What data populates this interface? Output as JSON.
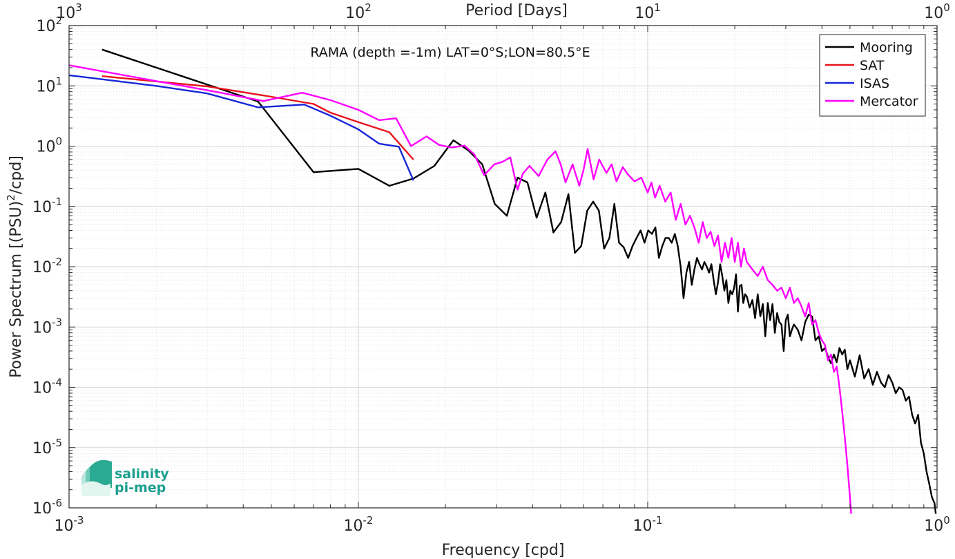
{
  "chart_data": {
    "type": "line",
    "title": "",
    "annotation": "RAMA (depth =-1m) LAT=0°S;LON=80.5°E",
    "xlabel": "Frequency [cpd]",
    "ylabel_main": "Power Spectrum [(PSU)",
    "ylabel_sup": "2",
    "ylabel_tail": "/cpd]",
    "top_xlabel": "Period [Days]",
    "xscale": "log",
    "yscale": "log",
    "xlim": [
      0.001,
      1
    ],
    "ylim": [
      1e-06,
      100
    ],
    "grid": true,
    "legend_position": "top-right",
    "x_ticks": [
      {
        "value": 0.001,
        "base": "10",
        "exp": "-3"
      },
      {
        "value": 0.01,
        "base": "10",
        "exp": "-2"
      },
      {
        "value": 0.1,
        "base": "10",
        "exp": "-1"
      },
      {
        "value": 1,
        "base": "10",
        "exp": "0"
      }
    ],
    "top_ticks": [
      {
        "freq": 0.001,
        "base": "10",
        "exp": "3"
      },
      {
        "freq": 0.01,
        "base": "10",
        "exp": "2"
      },
      {
        "freq": 0.1,
        "base": "10",
        "exp": "1"
      },
      {
        "freq": 1,
        "base": "10",
        "exp": "0"
      }
    ],
    "y_ticks": [
      {
        "value": 1e-06,
        "base": "10",
        "exp": "-6"
      },
      {
        "value": 1e-05,
        "base": "10",
        "exp": "-5"
      },
      {
        "value": 0.0001,
        "base": "10",
        "exp": "-4"
      },
      {
        "value": 0.001,
        "base": "10",
        "exp": "-3"
      },
      {
        "value": 0.01,
        "base": "10",
        "exp": "-2"
      },
      {
        "value": 0.1,
        "base": "10",
        "exp": "-1"
      },
      {
        "value": 1,
        "base": "10",
        "exp": "0"
      },
      {
        "value": 10,
        "base": "10",
        "exp": "1"
      },
      {
        "value": 100,
        "base": "10",
        "exp": "2"
      }
    ],
    "series": [
      {
        "name": "Mooring",
        "color": "#000000",
        "points": [
          [
            0.0013,
            40
          ],
          [
            0.0045,
            5.5
          ],
          [
            0.007,
            0.37
          ],
          [
            0.01,
            0.42
          ],
          [
            0.0128,
            0.22
          ],
          [
            0.0155,
            0.29
          ],
          [
            0.0183,
            0.47
          ],
          [
            0.0213,
            1.25
          ],
          [
            0.024,
            0.85
          ],
          [
            0.0268,
            0.5
          ],
          [
            0.0296,
            0.11
          ],
          [
            0.0326,
            0.07
          ],
          [
            0.0355,
            0.3
          ],
          [
            0.0384,
            0.25
          ],
          [
            0.0413,
            0.065
          ],
          [
            0.0443,
            0.17
          ],
          [
            0.0472,
            0.037
          ],
          [
            0.0502,
            0.055
          ],
          [
            0.0532,
            0.16
          ],
          [
            0.056,
            0.017
          ],
          [
            0.0589,
            0.022
          ],
          [
            0.0618,
            0.085
          ],
          [
            0.0648,
            0.12
          ],
          [
            0.0678,
            0.085
          ],
          [
            0.0707,
            0.02
          ],
          [
            0.0737,
            0.03
          ],
          [
            0.0767,
            0.11
          ],
          [
            0.0796,
            0.025
          ],
          [
            0.0826,
            0.021
          ],
          [
            0.0856,
            0.014
          ],
          [
            0.0886,
            0.022
          ],
          [
            0.0915,
            0.03
          ],
          [
            0.0945,
            0.04
          ],
          [
            0.0975,
            0.025
          ],
          [
            0.1004,
            0.04
          ],
          [
            0.1034,
            0.035
          ],
          [
            0.1063,
            0.045
          ],
          [
            0.1093,
            0.014
          ],
          [
            0.1123,
            0.022
          ],
          [
            0.1152,
            0.03
          ],
          [
            0.1182,
            0.03
          ],
          [
            0.1211,
            0.025
          ],
          [
            0.1241,
            0.035
          ],
          [
            0.127,
            0.022
          ],
          [
            0.13,
            0.01
          ],
          [
            0.133,
            0.003
          ],
          [
            0.136,
            0.008
          ],
          [
            0.139,
            0.012
          ],
          [
            0.142,
            0.005
          ],
          [
            0.145,
            0.009
          ],
          [
            0.148,
            0.014
          ],
          [
            0.151,
            0.011
          ],
          [
            0.154,
            0.009
          ],
          [
            0.157,
            0.012
          ],
          [
            0.16,
            0.01
          ],
          [
            0.163,
            0.008
          ],
          [
            0.166,
            0.011
          ],
          [
            0.169,
            0.006
          ],
          [
            0.172,
            0.0035
          ],
          [
            0.175,
            0.0055
          ],
          [
            0.178,
            0.011
          ],
          [
            0.181,
            0.007
          ],
          [
            0.184,
            0.004
          ],
          [
            0.187,
            0.006
          ],
          [
            0.19,
            0.0025
          ],
          [
            0.193,
            0.004
          ],
          [
            0.196,
            0.0035
          ],
          [
            0.199,
            0.0045
          ],
          [
            0.202,
            0.0075
          ],
          [
            0.205,
            0.0018
          ],
          [
            0.208,
            0.0048
          ],
          [
            0.211,
            0.005
          ],
          [
            0.214,
            0.0025
          ],
          [
            0.217,
            0.0035
          ],
          [
            0.22,
            0.0032
          ],
          [
            0.225,
            0.0021
          ],
          [
            0.23,
            0.0028
          ],
          [
            0.235,
            0.0014
          ],
          [
            0.24,
            0.0035
          ],
          [
            0.245,
            0.0015
          ],
          [
            0.25,
            0.0024
          ],
          [
            0.255,
            0.0007
          ],
          [
            0.26,
            0.0025
          ],
          [
            0.265,
            0.0013
          ],
          [
            0.27,
            0.0024
          ],
          [
            0.275,
            0.0008
          ],
          [
            0.28,
            0.0017
          ],
          [
            0.285,
            0.0012
          ],
          [
            0.29,
            0.0011
          ],
          [
            0.295,
            0.0004
          ],
          [
            0.3,
            0.0013
          ],
          [
            0.305,
            0.0016
          ],
          [
            0.31,
            0.0007
          ],
          [
            0.315,
            0.0009
          ],
          [
            0.32,
            0.0011
          ],
          [
            0.33,
            0.0009
          ],
          [
            0.34,
            0.0006
          ],
          [
            0.35,
            0.0012
          ],
          [
            0.36,
            0.0016
          ],
          [
            0.37,
            0.0015
          ],
          [
            0.38,
            0.0006
          ],
          [
            0.39,
            0.0007
          ],
          [
            0.4,
            0.0004
          ],
          [
            0.41,
            0.00045
          ],
          [
            0.42,
            0.00032
          ],
          [
            0.43,
            0.00025
          ],
          [
            0.44,
            0.00035
          ],
          [
            0.45,
            0.00026
          ],
          [
            0.46,
            0.00045
          ],
          [
            0.47,
            0.00035
          ],
          [
            0.48,
            0.00042
          ],
          [
            0.49,
            0.0002
          ],
          [
            0.5,
            0.00028
          ],
          [
            0.52,
            0.00015
          ],
          [
            0.54,
            0.00034
          ],
          [
            0.56,
            0.00014
          ],
          [
            0.58,
            0.0002
          ],
          [
            0.6,
            0.00011
          ],
          [
            0.62,
            0.00018
          ],
          [
            0.64,
            0.00012
          ],
          [
            0.66,
            0.0001
          ],
          [
            0.68,
            0.00016
          ],
          [
            0.7,
            0.00012
          ],
          [
            0.72,
            8e-05
          ],
          [
            0.74,
            0.0001
          ],
          [
            0.76,
            9e-05
          ],
          [
            0.78,
            6e-05
          ],
          [
            0.8,
            7e-05
          ],
          [
            0.82,
            3.5e-05
          ],
          [
            0.84,
            2.5e-05
          ],
          [
            0.86,
            3.5e-05
          ],
          [
            0.88,
            1.2e-05
          ],
          [
            0.9,
            8e-06
          ],
          [
            0.92,
            4e-06
          ],
          [
            0.94,
            2.5e-06
          ],
          [
            0.96,
            1.5e-06
          ],
          [
            0.98,
            1.2e-06
          ],
          [
            0.99,
            8e-07
          ]
        ]
      },
      {
        "name": "SAT",
        "color": "#e8141b",
        "points": [
          [
            0.0013,
            14.5
          ],
          [
            0.003,
            9.8
          ],
          [
            0.005,
            6.6
          ],
          [
            0.007,
            5
          ],
          [
            0.008,
            3.6
          ],
          [
            0.01,
            2.5
          ],
          [
            0.0128,
            1.7
          ],
          [
            0.0155,
            0.6
          ]
        ]
      },
      {
        "name": "ISAS",
        "color": "#1525d8",
        "points": [
          [
            0.001,
            15
          ],
          [
            0.002,
            10
          ],
          [
            0.003,
            7.5
          ],
          [
            0.0045,
            4.4
          ],
          [
            0.0065,
            4.9
          ],
          [
            0.008,
            3.2
          ],
          [
            0.01,
            1.9
          ],
          [
            0.0118,
            1.1
          ],
          [
            0.0138,
            0.98
          ],
          [
            0.0155,
            0.27
          ]
        ]
      },
      {
        "name": "Mercator",
        "color": "#ff00ff",
        "points": [
          [
            0.001,
            22
          ],
          [
            0.002,
            12
          ],
          [
            0.0032,
            8
          ],
          [
            0.0047,
            5.6
          ],
          [
            0.0064,
            7.7
          ],
          [
            0.008,
            5.8
          ],
          [
            0.01,
            4
          ],
          [
            0.0118,
            2.7
          ],
          [
            0.0135,
            2.9
          ],
          [
            0.0152,
            1
          ],
          [
            0.0172,
            1.45
          ],
          [
            0.019,
            1.05
          ],
          [
            0.021,
            0.95
          ],
          [
            0.0233,
            1.02
          ],
          [
            0.0252,
            0.72
          ],
          [
            0.0272,
            0.33
          ],
          [
            0.0295,
            0.5
          ],
          [
            0.0315,
            0.55
          ],
          [
            0.0335,
            0.65
          ],
          [
            0.0355,
            0.19
          ],
          [
            0.037,
            0.35
          ],
          [
            0.039,
            0.47
          ],
          [
            0.042,
            0.32
          ],
          [
            0.045,
            0.6
          ],
          [
            0.048,
            0.82
          ],
          [
            0.05,
            0.5
          ],
          [
            0.052,
            0.25
          ],
          [
            0.055,
            0.5
          ],
          [
            0.058,
            0.22
          ],
          [
            0.06,
            0.4
          ],
          [
            0.062,
            0.9
          ],
          [
            0.065,
            0.28
          ],
          [
            0.068,
            0.6
          ],
          [
            0.072,
            0.36
          ],
          [
            0.075,
            0.5
          ],
          [
            0.078,
            0.26
          ],
          [
            0.082,
            0.45
          ],
          [
            0.085,
            0.35
          ],
          [
            0.09,
            0.26
          ],
          [
            0.095,
            0.3
          ],
          [
            0.1,
            0.17
          ],
          [
            0.103,
            0.25
          ],
          [
            0.106,
            0.14
          ],
          [
            0.11,
            0.22
          ],
          [
            0.115,
            0.12
          ],
          [
            0.12,
            0.17
          ],
          [
            0.125,
            0.06
          ],
          [
            0.13,
            0.11
          ],
          [
            0.135,
            0.05
          ],
          [
            0.14,
            0.07
          ],
          [
            0.145,
            0.045
          ],
          [
            0.15,
            0.025
          ],
          [
            0.155,
            0.055
          ],
          [
            0.16,
            0.03
          ],
          [
            0.165,
            0.038
          ],
          [
            0.17,
            0.022
          ],
          [
            0.175,
            0.033
          ],
          [
            0.18,
            0.012
          ],
          [
            0.185,
            0.025
          ],
          [
            0.19,
            0.014
          ],
          [
            0.195,
            0.03
          ],
          [
            0.2,
            0.012
          ],
          [
            0.205,
            0.025
          ],
          [
            0.21,
            0.01
          ],
          [
            0.215,
            0.02
          ],
          [
            0.22,
            0.012
          ],
          [
            0.23,
            0.009
          ],
          [
            0.24,
            0.007
          ],
          [
            0.25,
            0.01
          ],
          [
            0.26,
            0.006
          ],
          [
            0.27,
            0.005
          ],
          [
            0.28,
            0.004
          ],
          [
            0.29,
            0.0045
          ],
          [
            0.3,
            0.003
          ],
          [
            0.31,
            0.0045
          ],
          [
            0.32,
            0.0025
          ],
          [
            0.33,
            0.003
          ],
          [
            0.34,
            0.0022
          ],
          [
            0.35,
            0.0015
          ],
          [
            0.36,
            0.0025
          ],
          [
            0.37,
            0.0011
          ],
          [
            0.38,
            0.0013
          ],
          [
            0.39,
            0.0008
          ],
          [
            0.4,
            0.0006
          ],
          [
            0.41,
            0.0005
          ],
          [
            0.42,
            0.00028
          ],
          [
            0.43,
            0.00035
          ],
          [
            0.44,
            0.00018
          ],
          [
            0.45,
            0.00022
          ],
          [
            0.46,
            0.0001
          ],
          [
            0.47,
            4e-05
          ],
          [
            0.48,
            1.5e-05
          ],
          [
            0.49,
            5e-06
          ],
          [
            0.5,
            1.5e-06
          ],
          [
            0.505,
            8e-07
          ]
        ]
      }
    ]
  },
  "logo": {
    "line1": "salinity",
    "line2": "pi-mep"
  }
}
